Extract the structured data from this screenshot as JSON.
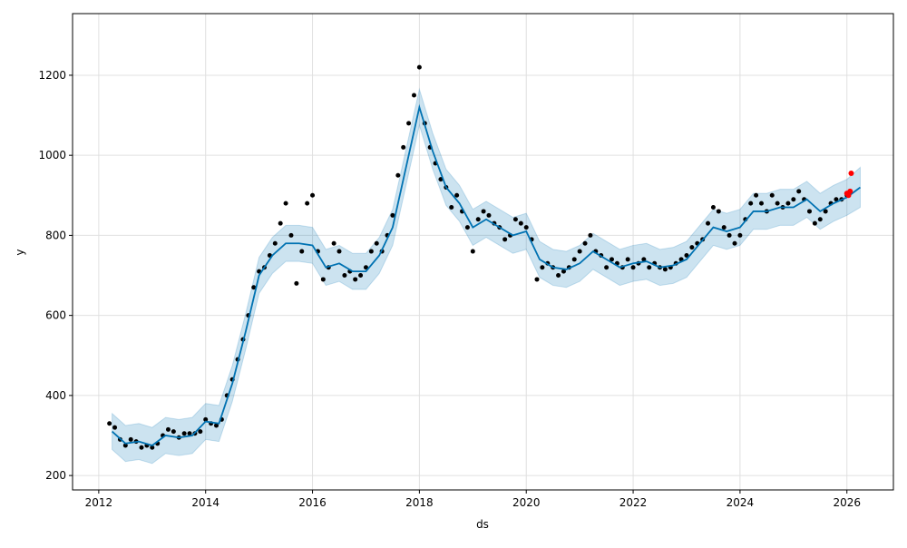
{
  "chart_data": {
    "type": "forecast",
    "xlabel": "ds",
    "ylabel": "y",
    "xlim": [
      2011.51,
      2026.87
    ],
    "ylim": [
      164,
      1354
    ],
    "xticks": [
      2012,
      2014,
      2016,
      2018,
      2020,
      2022,
      2024,
      2026
    ],
    "yticks": [
      200,
      400,
      600,
      800,
      1000,
      1200
    ],
    "grid": true,
    "actual": {
      "color": "#000000",
      "x": [
        2012.2,
        2012.3,
        2012.4,
        2012.5,
        2012.6,
        2012.7,
        2012.8,
        2012.9,
        2013.0,
        2013.1,
        2013.2,
        2013.3,
        2013.4,
        2013.5,
        2013.6,
        2013.7,
        2013.8,
        2013.9,
        2014.0,
        2014.1,
        2014.2,
        2014.3,
        2014.4,
        2014.5,
        2014.6,
        2014.7,
        2014.8,
        2014.9,
        2015.0,
        2015.1,
        2015.2,
        2015.3,
        2015.4,
        2015.5,
        2015.6,
        2015.7,
        2015.8,
        2015.9,
        2016.0,
        2016.1,
        2016.2,
        2016.3,
        2016.4,
        2016.5,
        2016.6,
        2016.7,
        2016.8,
        2016.9,
        2017.0,
        2017.1,
        2017.2,
        2017.3,
        2017.4,
        2017.5,
        2017.6,
        2017.7,
        2017.8,
        2017.9,
        2018.0,
        2018.1,
        2018.2,
        2018.3,
        2018.4,
        2018.5,
        2018.6,
        2018.7,
        2018.8,
        2018.9,
        2019.0,
        2019.1,
        2019.2,
        2019.3,
        2019.4,
        2019.5,
        2019.6,
        2019.7,
        2019.8,
        2019.9,
        2020.0,
        2020.1,
        2020.2,
        2020.3,
        2020.4,
        2020.5,
        2020.6,
        2020.7,
        2020.8,
        2020.9,
        2021.0,
        2021.1,
        2021.2,
        2021.3,
        2021.4,
        2021.5,
        2021.6,
        2021.7,
        2021.8,
        2021.9,
        2022.0,
        2022.1,
        2022.2,
        2022.3,
        2022.4,
        2022.5,
        2022.6,
        2022.7,
        2022.8,
        2022.9,
        2023.0,
        2023.1,
        2023.2,
        2023.3,
        2023.4,
        2023.5,
        2023.6,
        2023.7,
        2023.8,
        2023.9,
        2024.0,
        2024.1,
        2024.2,
        2024.3,
        2024.4,
        2024.5,
        2024.6,
        2024.7,
        2024.8,
        2024.9,
        2025.0,
        2025.1,
        2025.2,
        2025.3,
        2025.4,
        2025.5,
        2025.6,
        2025.7,
        2025.8,
        2025.9,
        2026.0
      ],
      "values": [
        330,
        320,
        290,
        275,
        290,
        285,
        270,
        275,
        270,
        280,
        300,
        315,
        310,
        295,
        305,
        305,
        305,
        310,
        340,
        330,
        325,
        340,
        400,
        440,
        490,
        540,
        600,
        670,
        710,
        720,
        750,
        780,
        830,
        880,
        800,
        680,
        760,
        880,
        900,
        760,
        690,
        720,
        780,
        760,
        700,
        710,
        690,
        700,
        720,
        760,
        780,
        760,
        800,
        850,
        950,
        1020,
        1080,
        1150,
        1220,
        1080,
        1020,
        980,
        940,
        920,
        870,
        900,
        860,
        820,
        760,
        840,
        860,
        850,
        830,
        820,
        790,
        800,
        840,
        830,
        820,
        790,
        690,
        720,
        730,
        720,
        700,
        710,
        720,
        740,
        760,
        780,
        800,
        760,
        750,
        720,
        740,
        730,
        720,
        740,
        720,
        730,
        740,
        720,
        730,
        720,
        715,
        720,
        730,
        740,
        750,
        770,
        780,
        790,
        830,
        870,
        860,
        820,
        800,
        780,
        800,
        840,
        880,
        900,
        880,
        860,
        900,
        880,
        870,
        880,
        890,
        910,
        890,
        860,
        830,
        840,
        860,
        880,
        890,
        890,
        900
      ]
    },
    "forecast": {
      "color": "#0072b2",
      "band_color": "#0072b2",
      "x": [
        2012.25,
        2012.5,
        2012.75,
        2013.0,
        2013.25,
        2013.5,
        2013.75,
        2014.0,
        2014.25,
        2014.5,
        2014.75,
        2015.0,
        2015.25,
        2015.5,
        2015.75,
        2016.0,
        2016.25,
        2016.5,
        2016.75,
        2017.0,
        2017.25,
        2017.5,
        2017.75,
        2018.0,
        2018.25,
        2018.5,
        2018.75,
        2019.0,
        2019.25,
        2019.5,
        2019.75,
        2020.0,
        2020.25,
        2020.5,
        2020.75,
        2021.0,
        2021.25,
        2021.5,
        2021.75,
        2022.0,
        2022.25,
        2022.5,
        2022.75,
        2023.0,
        2023.25,
        2023.5,
        2023.75,
        2024.0,
        2024.25,
        2024.5,
        2024.75,
        2025.0,
        2025.25,
        2025.5,
        2025.75,
        2026.0,
        2026.25
      ],
      "values": [
        310,
        280,
        285,
        275,
        300,
        295,
        300,
        335,
        330,
        430,
        560,
        700,
        750,
        780,
        780,
        775,
        720,
        730,
        710,
        710,
        750,
        820,
        970,
        1120,
        1010,
        920,
        880,
        820,
        840,
        820,
        800,
        810,
        740,
        720,
        715,
        730,
        760,
        740,
        720,
        730,
        735,
        720,
        725,
        740,
        780,
        820,
        810,
        820,
        860,
        860,
        870,
        870,
        890,
        860,
        880,
        895,
        920
      ],
      "lower": [
        265,
        235,
        240,
        230,
        255,
        250,
        255,
        290,
        285,
        385,
        515,
        655,
        705,
        735,
        735,
        730,
        675,
        685,
        665,
        665,
        705,
        775,
        925,
        1075,
        965,
        875,
        835,
        775,
        795,
        775,
        755,
        765,
        695,
        675,
        670,
        685,
        715,
        695,
        675,
        685,
        690,
        675,
        680,
        695,
        735,
        775,
        765,
        775,
        815,
        815,
        825,
        825,
        845,
        815,
        835,
        850,
        870
      ],
      "upper": [
        355,
        325,
        330,
        320,
        345,
        340,
        345,
        380,
        375,
        475,
        605,
        745,
        795,
        825,
        825,
        820,
        765,
        775,
        755,
        755,
        795,
        865,
        1015,
        1165,
        1055,
        965,
        925,
        865,
        885,
        865,
        845,
        855,
        785,
        765,
        760,
        775,
        805,
        785,
        765,
        775,
        780,
        765,
        770,
        785,
        825,
        865,
        855,
        865,
        905,
        905,
        915,
        915,
        935,
        905,
        925,
        940,
        970
      ]
    },
    "recent": {
      "color": "#ff0000",
      "x": [
        2026.0,
        2026.03,
        2026.06,
        2026.08
      ],
      "values": [
        905,
        900,
        910,
        955
      ]
    }
  }
}
